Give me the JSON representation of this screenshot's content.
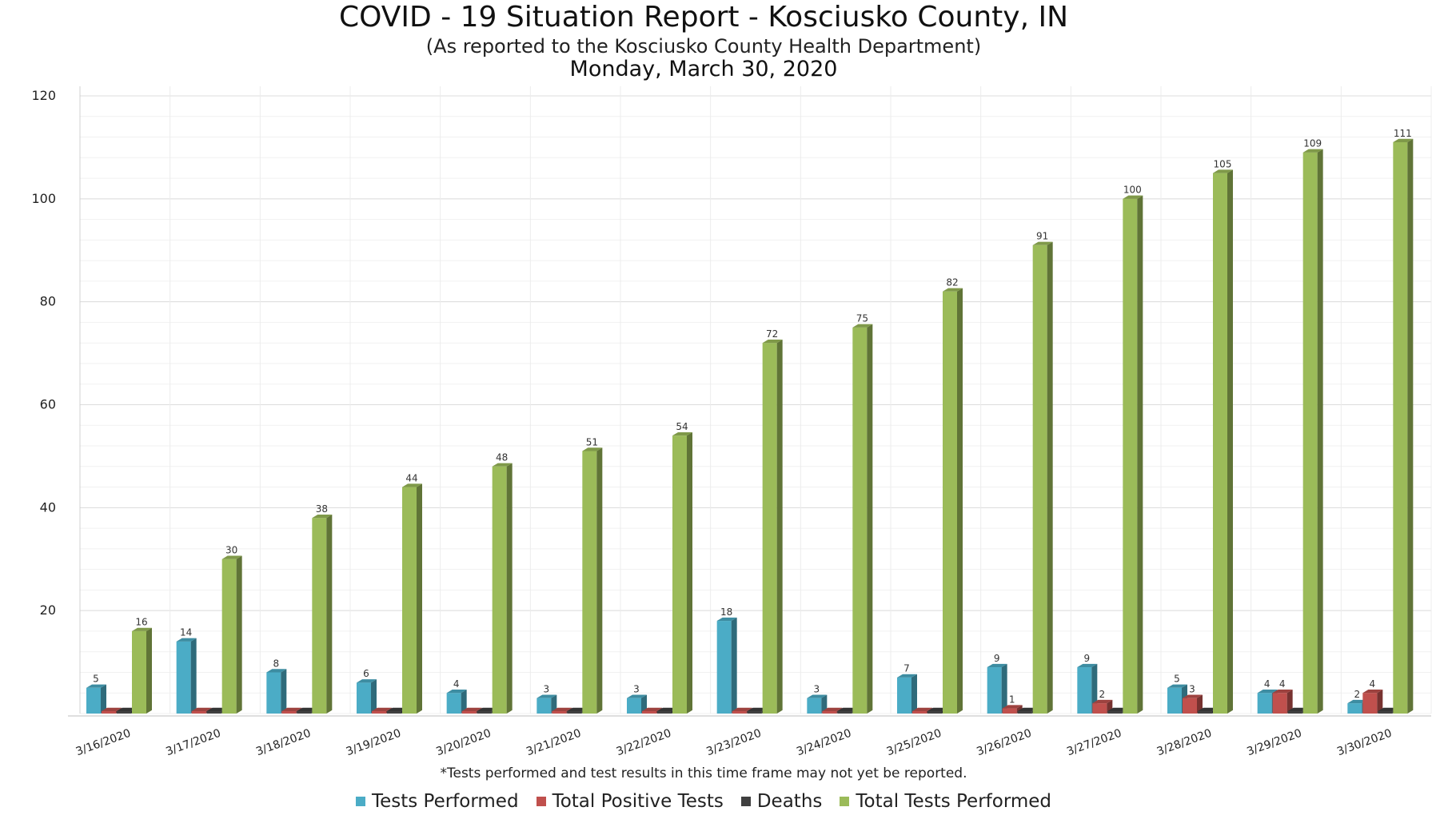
{
  "header": {
    "title": "COVID - 19 Situation Report - Kosciusko County, IN",
    "subtitle": "(As reported to the Kosciusko County Health Department)",
    "date": "Monday, March 30, 2020"
  },
  "footnote": "*Tests performed and test results in this time frame may not yet be reported.",
  "chart_data": {
    "type": "bar",
    "categories": [
      "3/16/2020",
      "3/17/2020",
      "3/18/2020",
      "3/19/2020",
      "3/20/2020",
      "3/21/2020",
      "3/22/2020",
      "3/23/2020",
      "3/24/2020",
      "3/25/2020",
      "3/26/2020",
      "3/27/2020",
      "3/28/2020",
      "3/29/2020",
      "3/30/2020"
    ],
    "series": [
      {
        "name": "Tests Performed",
        "color": "#4bacc6",
        "values": [
          5,
          14,
          8,
          6,
          4,
          3,
          3,
          18,
          3,
          7,
          9,
          9,
          5,
          4,
          2
        ]
      },
      {
        "name": "Total Positive Tests",
        "color": "#c0504d",
        "values": [
          0,
          0,
          0,
          0,
          0,
          0,
          0,
          0,
          0,
          0,
          1,
          2,
          3,
          4,
          4
        ]
      },
      {
        "name": "Deaths",
        "color": "#404040",
        "values": [
          0,
          0,
          0,
          0,
          0,
          0,
          0,
          0,
          0,
          0,
          0,
          0,
          0,
          0,
          0
        ]
      },
      {
        "name": "Total Tests Performed",
        "color": "#9bbb59",
        "values": [
          16,
          30,
          38,
          44,
          48,
          51,
          54,
          72,
          75,
          82,
          91,
          100,
          105,
          109,
          111
        ]
      }
    ],
    "ylim": [
      0,
      120
    ],
    "yticks": [
      20,
      40,
      60,
      80,
      100,
      120
    ],
    "grid": true,
    "legend_position": "bottom"
  }
}
